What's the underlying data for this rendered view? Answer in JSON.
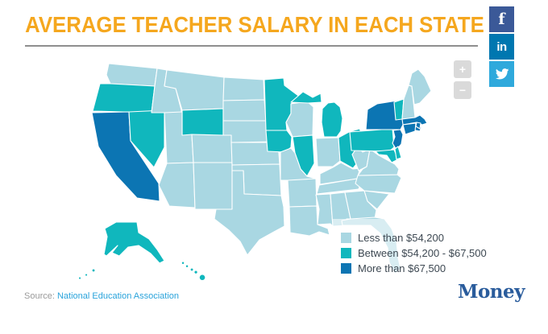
{
  "header": {
    "title": "AVERAGE TEACHER SALARY IN EACH STATE"
  },
  "social": {
    "facebook_label": "f",
    "linkedin_label": "in",
    "twitter_icon": "twitter-bird"
  },
  "map_controls": {
    "zoom_in": "+",
    "zoom_out": "−"
  },
  "footer": {
    "source_label": "Source:",
    "source_link": "National Education Association",
    "brand": "Money"
  },
  "colors": {
    "title": "#F5A71E",
    "map_low": "#A9D7E2",
    "map_mid": "#10B7BD",
    "map_high": "#0C75B3",
    "map_border": "#FFFFFF",
    "facebook": "#3B5998",
    "linkedin": "#0077B0",
    "twitter": "#2FA9DC",
    "brand_blue": "#2A5C9C",
    "source_link_blue": "#29A3DB",
    "legend_text": "#3D4852"
  },
  "chart_data": {
    "type": "choropleth",
    "title": "AVERAGE TEACHER SALARY IN EACH STATE",
    "unit": "average teacher salary (USD)",
    "legend_position": "bottom-right overlay",
    "source": "National Education Association",
    "categories": [
      {
        "label": "Less than $54,200",
        "color": "#A9D7E2",
        "states": [
          "WA",
          "ID",
          "MT",
          "ND",
          "SD",
          "NE",
          "KS",
          "OK",
          "TX",
          "NM",
          "AZ",
          "UT",
          "CO",
          "WI",
          "IN",
          "MO",
          "AR",
          "LA",
          "MS",
          "AL",
          "TN",
          "KY",
          "WV",
          "VA",
          "NC",
          "SC",
          "GA",
          "FL",
          "ME",
          "NH"
        ]
      },
      {
        "label": "Between $54,200 - $67,500",
        "color": "#10B7BD",
        "states": [
          "OR",
          "NV",
          "WY",
          "MN",
          "IA",
          "IL",
          "MI",
          "OH",
          "PA",
          "VT",
          "MD",
          "DE",
          "AK",
          "HI"
        ]
      },
      {
        "label": "More than $67,500",
        "color": "#0C75B3",
        "states": [
          "CA",
          "NY",
          "NJ",
          "MA",
          "CT",
          "RI"
        ]
      }
    ]
  }
}
